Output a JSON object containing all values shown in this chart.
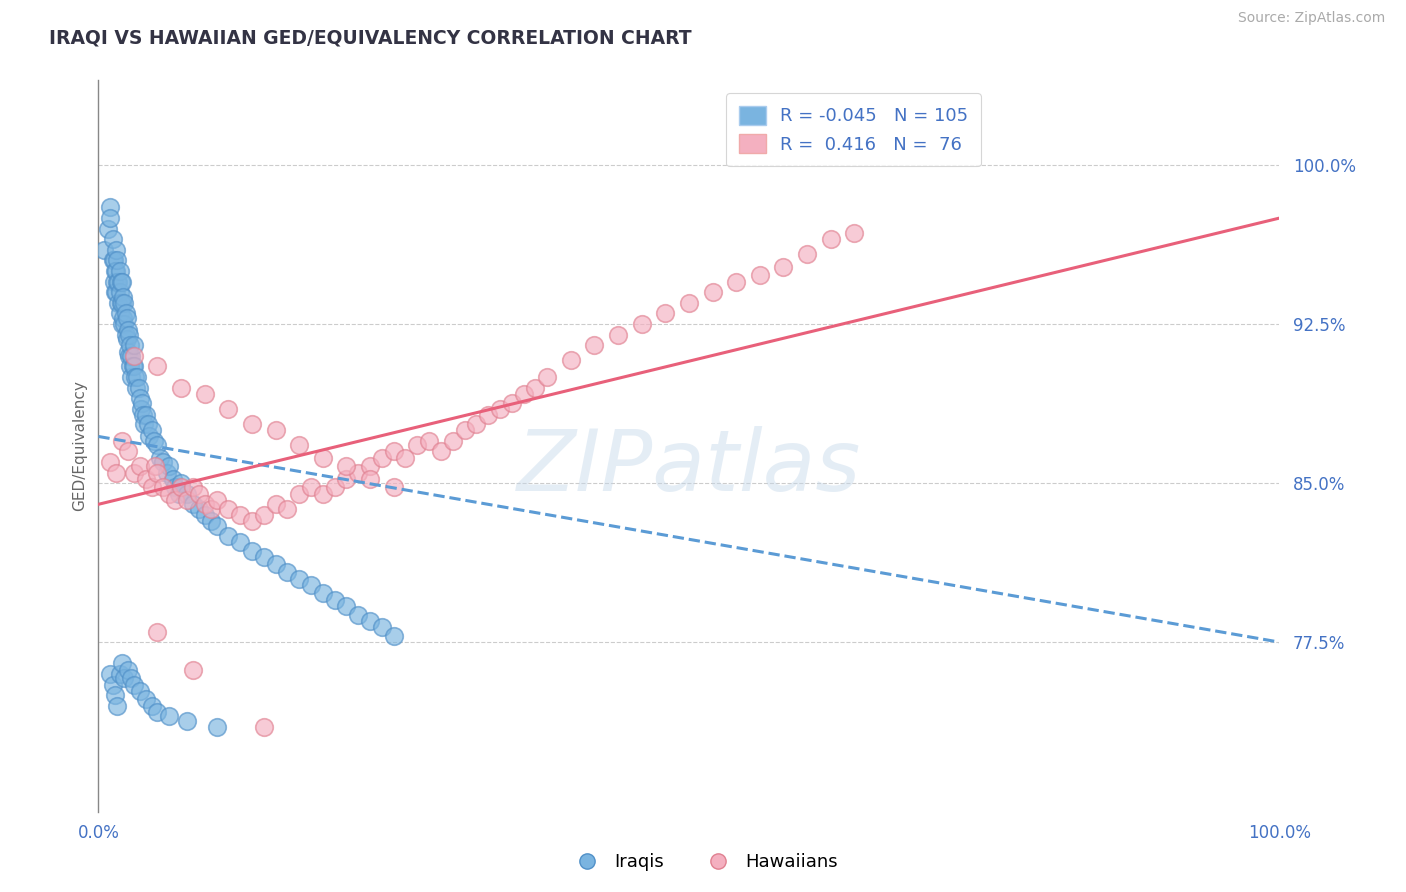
{
  "title": "IRAQI VS HAWAIIAN GED/EQUIVALENCY CORRELATION CHART",
  "source_text": "Source: ZipAtlas.com",
  "ylabel": "GED/Equivalency",
  "xlim": [
    0.0,
    1.0
  ],
  "ylim": [
    0.695,
    1.04
  ],
  "yticks": [
    0.775,
    0.85,
    0.925,
    1.0
  ],
  "ytick_labels": [
    "77.5%",
    "85.0%",
    "92.5%",
    "100.0%"
  ],
  "xticks": [
    0.0,
    1.0
  ],
  "xtick_labels": [
    "0.0%",
    "100.0%"
  ],
  "iraqi_color": "#7ab4e0",
  "iraqi_edge": "#5090c8",
  "hawaiian_color": "#f4b0c0",
  "hawaiian_edge": "#e08090",
  "iraqi_R": -0.045,
  "iraqi_N": 105,
  "hawaiian_R": 0.416,
  "hawaiian_N": 76,
  "trend_iraqi_y_start": 0.872,
  "trend_iraqi_y_end": 0.775,
  "trend_hawaiian_y_start": 0.84,
  "trend_hawaiian_y_end": 0.975,
  "iraqi_trend_color": "#5b9bd5",
  "hawaiian_trend_color": "#e8607a",
  "watermark": "ZIPatlas",
  "bg_color": "#ffffff",
  "grid_color": "#cccccc",
  "title_color": "#333344",
  "tick_color": "#4472c4",
  "ylabel_color": "#666666",
  "source_color": "#aaaaaa",
  "legend_text_color": "#4472c4",
  "iraqi_x": [
    0.005,
    0.008,
    0.01,
    0.01,
    0.012,
    0.012,
    0.013,
    0.013,
    0.014,
    0.014,
    0.015,
    0.015,
    0.015,
    0.016,
    0.016,
    0.017,
    0.017,
    0.018,
    0.018,
    0.018,
    0.019,
    0.019,
    0.02,
    0.02,
    0.02,
    0.021,
    0.021,
    0.022,
    0.022,
    0.023,
    0.023,
    0.024,
    0.024,
    0.025,
    0.025,
    0.026,
    0.026,
    0.027,
    0.027,
    0.028,
    0.028,
    0.029,
    0.03,
    0.03,
    0.031,
    0.032,
    0.033,
    0.034,
    0.035,
    0.036,
    0.037,
    0.038,
    0.039,
    0.04,
    0.042,
    0.043,
    0.045,
    0.047,
    0.05,
    0.052,
    0.055,
    0.058,
    0.06,
    0.063,
    0.065,
    0.068,
    0.07,
    0.075,
    0.08,
    0.085,
    0.09,
    0.095,
    0.1,
    0.11,
    0.12,
    0.13,
    0.14,
    0.15,
    0.16,
    0.17,
    0.18,
    0.19,
    0.2,
    0.21,
    0.22,
    0.23,
    0.24,
    0.25,
    0.01,
    0.012,
    0.014,
    0.016,
    0.018,
    0.02,
    0.022,
    0.025,
    0.028,
    0.03,
    0.035,
    0.04,
    0.045,
    0.05,
    0.06,
    0.075,
    0.1
  ],
  "iraqi_y": [
    0.96,
    0.97,
    0.98,
    0.975,
    0.965,
    0.955,
    0.955,
    0.945,
    0.95,
    0.94,
    0.96,
    0.95,
    0.94,
    0.955,
    0.945,
    0.945,
    0.935,
    0.95,
    0.94,
    0.93,
    0.945,
    0.935,
    0.945,
    0.935,
    0.925,
    0.938,
    0.928,
    0.935,
    0.925,
    0.93,
    0.92,
    0.928,
    0.918,
    0.922,
    0.912,
    0.92,
    0.91,
    0.915,
    0.905,
    0.91,
    0.9,
    0.905,
    0.915,
    0.905,
    0.9,
    0.895,
    0.9,
    0.895,
    0.89,
    0.885,
    0.888,
    0.882,
    0.878,
    0.882,
    0.878,
    0.872,
    0.875,
    0.87,
    0.868,
    0.862,
    0.86,
    0.855,
    0.858,
    0.852,
    0.848,
    0.845,
    0.85,
    0.845,
    0.84,
    0.838,
    0.835,
    0.832,
    0.83,
    0.825,
    0.822,
    0.818,
    0.815,
    0.812,
    0.808,
    0.805,
    0.802,
    0.798,
    0.795,
    0.792,
    0.788,
    0.785,
    0.782,
    0.778,
    0.76,
    0.755,
    0.75,
    0.745,
    0.76,
    0.765,
    0.758,
    0.762,
    0.758,
    0.755,
    0.752,
    0.748,
    0.745,
    0.742,
    0.74,
    0.738,
    0.735
  ],
  "hawaiian_x": [
    0.01,
    0.015,
    0.02,
    0.025,
    0.03,
    0.035,
    0.04,
    0.045,
    0.048,
    0.05,
    0.055,
    0.06,
    0.065,
    0.07,
    0.075,
    0.08,
    0.085,
    0.09,
    0.095,
    0.1,
    0.11,
    0.12,
    0.13,
    0.14,
    0.15,
    0.16,
    0.17,
    0.18,
    0.19,
    0.2,
    0.21,
    0.22,
    0.23,
    0.24,
    0.25,
    0.26,
    0.27,
    0.28,
    0.29,
    0.3,
    0.31,
    0.32,
    0.33,
    0.34,
    0.35,
    0.36,
    0.37,
    0.38,
    0.4,
    0.42,
    0.44,
    0.46,
    0.48,
    0.5,
    0.52,
    0.54,
    0.56,
    0.58,
    0.6,
    0.62,
    0.64,
    0.03,
    0.05,
    0.07,
    0.09,
    0.11,
    0.13,
    0.15,
    0.17,
    0.19,
    0.21,
    0.23,
    0.25,
    0.05,
    0.08,
    0.14
  ],
  "hawaiian_y": [
    0.86,
    0.855,
    0.87,
    0.865,
    0.855,
    0.858,
    0.852,
    0.848,
    0.858,
    0.855,
    0.848,
    0.845,
    0.842,
    0.848,
    0.842,
    0.848,
    0.845,
    0.84,
    0.838,
    0.842,
    0.838,
    0.835,
    0.832,
    0.835,
    0.84,
    0.838,
    0.845,
    0.848,
    0.845,
    0.848,
    0.852,
    0.855,
    0.858,
    0.862,
    0.865,
    0.862,
    0.868,
    0.87,
    0.865,
    0.87,
    0.875,
    0.878,
    0.882,
    0.885,
    0.888,
    0.892,
    0.895,
    0.9,
    0.908,
    0.915,
    0.92,
    0.925,
    0.93,
    0.935,
    0.94,
    0.945,
    0.948,
    0.952,
    0.958,
    0.965,
    0.968,
    0.91,
    0.905,
    0.895,
    0.892,
    0.885,
    0.878,
    0.875,
    0.868,
    0.862,
    0.858,
    0.852,
    0.848,
    0.78,
    0.762,
    0.735
  ]
}
